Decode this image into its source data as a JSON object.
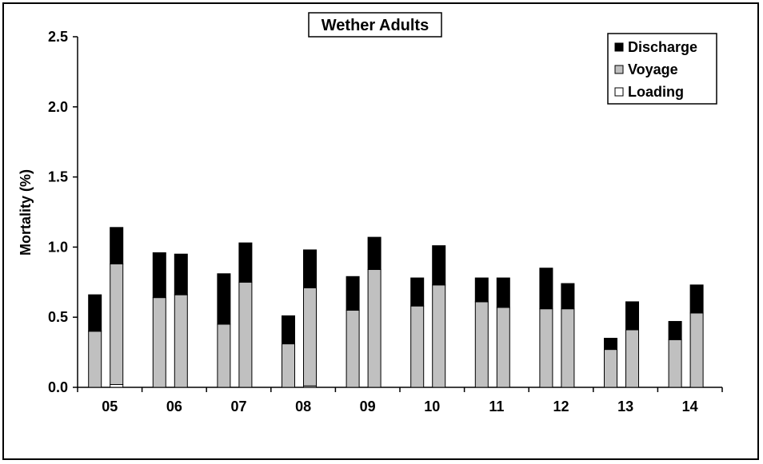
{
  "chart_data": {
    "type": "bar",
    "stacked": true,
    "title": "Wether Adults",
    "ylabel": "Mortality (%)",
    "xlabel": "",
    "ylim": [
      0,
      2.5
    ],
    "yticks": [
      "0.0",
      "0.5",
      "1.0",
      "1.5",
      "2.0",
      "2.5"
    ],
    "groups": [
      "05",
      "06",
      "07",
      "08",
      "09",
      "10",
      "11",
      "12",
      "13",
      "14"
    ],
    "bars_per_group": 2,
    "legend_position": "top-right",
    "grid": false,
    "series": [
      {
        "name": "Loading",
        "color": "#ffffff",
        "values": [
          0.0,
          0.02,
          0.0,
          0.0,
          0.0,
          0.0,
          0.0,
          0.01,
          0.0,
          0.0,
          0.0,
          0.0,
          0.0,
          0.0,
          0.0,
          0.0,
          0.0,
          0.0,
          0.0,
          0.0
        ]
      },
      {
        "name": "Voyage",
        "color": "#c0c0c0",
        "values": [
          0.4,
          0.86,
          0.64,
          0.66,
          0.45,
          0.75,
          0.31,
          0.7,
          0.55,
          0.84,
          0.58,
          0.73,
          0.61,
          0.57,
          0.56,
          0.56,
          0.27,
          0.41,
          0.34,
          0.53
        ]
      },
      {
        "name": "Discharge",
        "color": "#000000",
        "values": [
          0.26,
          0.26,
          0.32,
          0.29,
          0.36,
          0.28,
          0.2,
          0.27,
          0.24,
          0.23,
          0.2,
          0.28,
          0.17,
          0.21,
          0.29,
          0.18,
          0.08,
          0.2,
          0.13,
          0.2
        ]
      }
    ],
    "legend_order": [
      "Discharge",
      "Voyage",
      "Loading"
    ]
  }
}
